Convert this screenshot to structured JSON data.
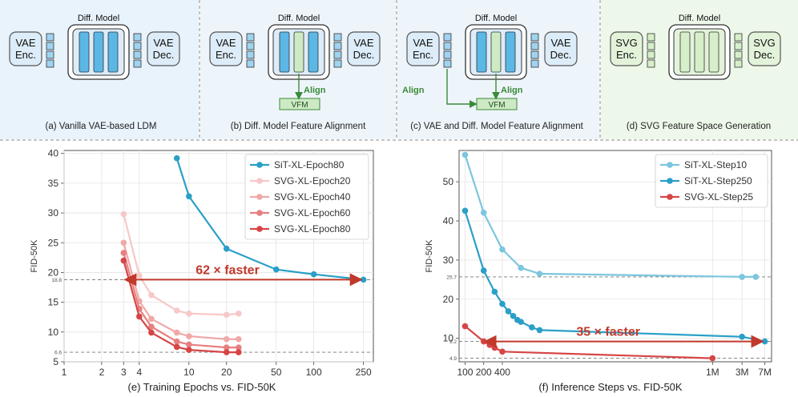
{
  "diagram": {
    "diff_model_label": "Diff. Model",
    "align_label": "Align",
    "vfm_label": "VFM",
    "panels": [
      {
        "caption": "(a) Vanilla VAE-based LDM",
        "encoder": "VAE\nEnc.",
        "decoder": "VAE\nDec.",
        "theme": "blue"
      },
      {
        "caption": "(b) Diff. Model Feature Alignment",
        "encoder": "VAE\nEnc.",
        "decoder": "VAE\nDec.",
        "theme": "blue"
      },
      {
        "caption": "(c) VAE and Diff. Model Feature Alignment",
        "encoder": "VAE\nEnc.",
        "decoder": "VAE\nDec.",
        "theme": "blue"
      },
      {
        "caption": "(d) SVG Feature Space Generation",
        "encoder": "SVG\nEnc.",
        "decoder": "SVG\nDec.",
        "theme": "green"
      }
    ]
  },
  "chart_data": [
    {
      "type": "line",
      "caption": "(e) Training Epochs vs. FID-50K",
      "xlabel": "",
      "ylabel": "FID-50K",
      "xscale": "log",
      "xlim": [
        1,
        300
      ],
      "ylim": [
        5,
        40.5
      ],
      "xticks": [
        1,
        2,
        3,
        4,
        10,
        20,
        50,
        100,
        250
      ],
      "xtick_labels": [
        "1",
        "2",
        "3",
        "4",
        "10",
        "20",
        "50",
        "100",
        "250"
      ],
      "yticks": [
        5,
        10,
        15,
        20,
        25,
        30,
        35,
        40
      ],
      "ytick_labels": [
        "5",
        "10",
        "15",
        "20",
        "25",
        "30",
        "35",
        "40"
      ],
      "ref_lines": [
        {
          "y": 18.8,
          "label": "18.8"
        },
        {
          "y": 6.6,
          "label": "6.6"
        }
      ],
      "grid": true,
      "legend_position": "top-right",
      "annotation": {
        "text": "62 × faster",
        "from_x": 3,
        "to_x": 250,
        "y": 18.8
      },
      "series": [
        {
          "name": "SiT-XL-Epoch80",
          "color": "#2a9fc7",
          "x": [
            8,
            10,
            20,
            50,
            100,
            250
          ],
          "y": [
            39.2,
            32.8,
            24.0,
            20.5,
            19.7,
            18.8
          ]
        },
        {
          "name": "SVG-XL-Epoch20",
          "color": "#f7c8c8",
          "x": [
            3,
            4,
            5,
            8,
            10,
            20,
            25
          ],
          "y": [
            29.8,
            19.5,
            16.2,
            13.6,
            13.1,
            12.9,
            13.1
          ]
        },
        {
          "name": "SVG-XL-Epoch40",
          "color": "#f0a8a8",
          "x": [
            3,
            4,
            5,
            8,
            10,
            20,
            25
          ],
          "y": [
            25.0,
            15.2,
            12.2,
            9.9,
            9.3,
            8.8,
            8.8
          ]
        },
        {
          "name": "SVG-XL-Epoch60",
          "color": "#e77f7f",
          "x": [
            3,
            4,
            5,
            8,
            10,
            20,
            25
          ],
          "y": [
            23.3,
            13.9,
            10.9,
            8.4,
            7.9,
            7.4,
            7.4
          ]
        },
        {
          "name": "SVG-XL-Epoch80",
          "color": "#d64545",
          "x": [
            3,
            4,
            5,
            8,
            10,
            20,
            25
          ],
          "y": [
            22.0,
            12.6,
            9.9,
            7.5,
            7.0,
            6.6,
            6.6
          ]
        }
      ]
    },
    {
      "type": "line",
      "caption": "(f) Inference Steps vs. FID-50K",
      "xlabel": "",
      "ylabel": "FID-50K",
      "xscale": "log",
      "xlim": [
        80,
        9000000
      ],
      "ylim": [
        4,
        58
      ],
      "xticks": [
        100,
        200,
        400,
        1000000,
        3000000,
        7000000
      ],
      "xtick_labels": [
        "100",
        "200",
        "400",
        "1M",
        "3M",
        "7M"
      ],
      "yticks": [
        10,
        20,
        30,
        40,
        50
      ],
      "ytick_labels": [
        "10",
        "20",
        "30",
        "40",
        "50"
      ],
      "ref_lines": [
        {
          "y": 25.7,
          "label": "25.7"
        },
        {
          "y": 9.2,
          "label": "9.2"
        },
        {
          "y": 4.9,
          "label": "4.9"
        }
      ],
      "grid": true,
      "legend_position": "top-right",
      "annotation": {
        "text": "35 × faster",
        "from_x": 200,
        "to_x": 7000000,
        "y": 9.2
      },
      "series": [
        {
          "name": "SiT-XL-Step10",
          "color": "#7cc6de",
          "x": [
            100,
            200,
            400,
            800,
            1600,
            3000000,
            5000000
          ],
          "y": [
            56.9,
            42.1,
            32.7,
            28.0,
            26.5,
            25.7,
            25.7
          ]
        },
        {
          "name": "SiT-XL-Step250",
          "color": "#2a9fc7",
          "x": [
            100,
            200,
            300,
            400,
            500,
            600,
            700,
            800,
            1200,
            1600,
            3000000,
            7000000
          ],
          "y": [
            42.6,
            27.3,
            21.9,
            18.8,
            16.9,
            15.7,
            14.7,
            14.2,
            12.8,
            12.1,
            10.4,
            9.2
          ]
        },
        {
          "name": "SVG-XL-Step25",
          "color": "#d64545",
          "x": [
            100,
            200,
            250,
            300,
            400,
            1000000
          ],
          "y": [
            13.1,
            9.2,
            8.3,
            7.6,
            6.6,
            4.9
          ]
        }
      ]
    }
  ]
}
